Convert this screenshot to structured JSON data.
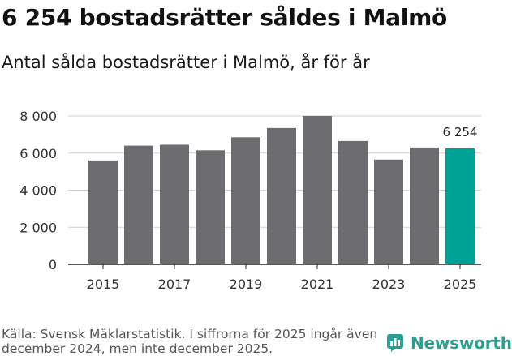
{
  "header": {
    "title": "6 254 bostadsrätter såldes i Malmö",
    "subtitle": "Antal sålda bostadsrätter i Malmö, år för år"
  },
  "footer": {
    "source": "Källa: Svensk Mäklarstatistik. I siffrorna för 2025 ingår även december 2024, men inte december 2025.",
    "brand": "Newsworthy"
  },
  "colors": {
    "bar": "#6d6c71",
    "highlight": "#00a295",
    "grid": "#cfcfcf",
    "axis": "#222222",
    "brand": "#2d9c92"
  },
  "chart_data": {
    "type": "bar",
    "title": "6 254 bostadsrätter såldes i Malmö",
    "subtitle": "Antal sålda bostadsrätter i Malmö, år för år",
    "xlabel": "",
    "ylabel": "",
    "categories": [
      "2015",
      "2016",
      "2017",
      "2018",
      "2019",
      "2020",
      "2021",
      "2022",
      "2023",
      "2024",
      "2025"
    ],
    "values": [
      5600,
      6400,
      6450,
      6150,
      6850,
      7350,
      8000,
      6650,
      5650,
      6300,
      6254
    ],
    "highlight_index": 10,
    "ylim": [
      0,
      8000
    ],
    "yticks": [
      0,
      2000,
      4000,
      6000,
      8000
    ],
    "ytick_labels": [
      "0",
      "2 000",
      "4 000",
      "6 000",
      "8 000"
    ],
    "xtick_labels": [
      "2015",
      "",
      "2017",
      "",
      "2019",
      "",
      "2021",
      "",
      "2023",
      "",
      "2025"
    ],
    "data_labels": [
      {
        "index": 10,
        "text": "6 254"
      }
    ],
    "grid": true
  }
}
